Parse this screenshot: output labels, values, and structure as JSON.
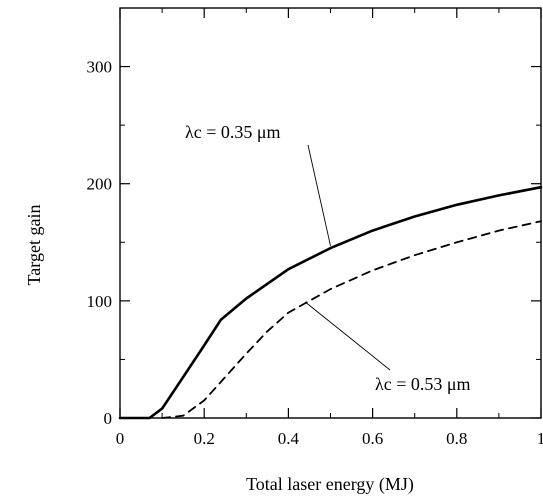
{
  "chart_data": {
    "type": "line",
    "title": "",
    "xlabel": "Total laser energy (MJ)",
    "ylabel": "Target gain",
    "xlim": [
      0,
      1
    ],
    "ylim": [
      0,
      350
    ],
    "x_ticks": [
      0,
      0.2,
      0.4,
      0.6,
      0.8,
      1
    ],
    "x_tick_labels": [
      "0",
      "0.2",
      "0.4",
      "0.6",
      "0.8",
      "1"
    ],
    "y_ticks": [
      0,
      100,
      200,
      300
    ],
    "y_tick_labels": [
      "0",
      "100",
      "200",
      "300"
    ],
    "grid": false,
    "legend": "none",
    "series": [
      {
        "style": "solid",
        "color": "#000000",
        "annotation": "λc = 0.35 μm",
        "x": [
          0,
          0.07,
          0.1,
          0.15,
          0.2,
          0.24,
          0.3,
          0.4,
          0.5,
          0.6,
          0.7,
          0.8,
          0.9,
          1.0
        ],
        "y": [
          0,
          0,
          8,
          35,
          62,
          84,
          102,
          127,
          145,
          160,
          172,
          182,
          190,
          197
        ]
      },
      {
        "style": "dashed",
        "color": "#000000",
        "annotation": "λc = 0.53 μm",
        "x": [
          0.1,
          0.15,
          0.2,
          0.25,
          0.3,
          0.35,
          0.4,
          0.5,
          0.6,
          0.7,
          0.8,
          0.9,
          1.0
        ],
        "y": [
          0,
          2,
          15,
          35,
          55,
          74,
          90,
          110,
          126,
          139,
          150,
          160,
          168
        ]
      }
    ]
  }
}
